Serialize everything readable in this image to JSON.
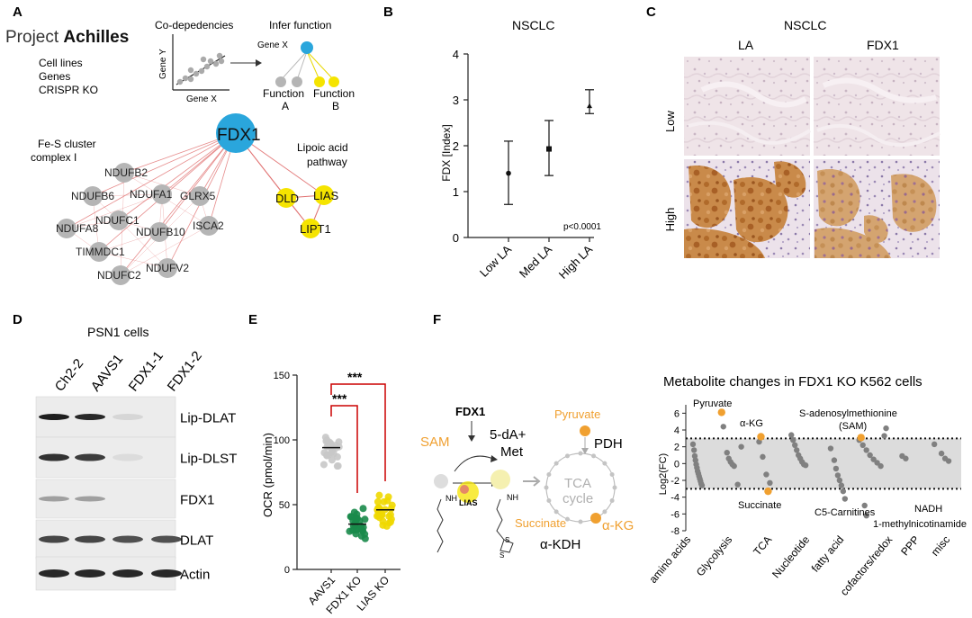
{
  "panels": {
    "a": {
      "letter": "A",
      "logo_text_light": "Project ",
      "logo_text_bold": "Achilles",
      "info_lines": [
        "Cell lines",
        "Genes",
        "CRISPR KO"
      ],
      "codep_title": "Co-depedencies",
      "infer_title": "Infer function",
      "gene_y": "Gene Y",
      "gene_x": "Gene X",
      "gene_x_node": "Gene X",
      "function_a": [
        "Function",
        "A"
      ],
      "function_b": [
        "Function",
        "B"
      ],
      "fes_label": [
        "Fe-S cluster",
        "complex I"
      ],
      "lipoic_label": [
        "Lipoic acid",
        "pathway"
      ],
      "hub": "FDX1",
      "fes_nodes": [
        "NDUFB2",
        "NDUFB6",
        "NDUFA1",
        "GLRX5",
        "NDUFA8",
        "NDUFC1",
        "ISCA2",
        "NDUFB10",
        "TIMMDC1",
        "NDUFC2",
        "NDUFV2"
      ],
      "lipoic_nodes": [
        "DLD",
        "LIAS",
        "LIPT1"
      ],
      "colors": {
        "hub": "#2aa6dc",
        "node": "#b5b5b5",
        "lipoic": "#f5e400",
        "edge": "#e07070"
      }
    },
    "b": {
      "letter": "B",
      "chart_data": {
        "type": "scatter",
        "title": "NSCLC",
        "ylabel": "FDX [Index]",
        "categories": [
          "Low LA",
          "Med LA",
          "High LA"
        ],
        "means": [
          1.4,
          1.93,
          2.87
        ],
        "error_low": [
          0.72,
          1.35,
          2.7
        ],
        "error_high": [
          2.1,
          2.55,
          3.22
        ],
        "ylim": [
          0,
          4
        ],
        "yticks": [
          0,
          1,
          2,
          3,
          4
        ],
        "annotation": "p<0.0001"
      }
    },
    "c": {
      "letter": "C",
      "title": "NSCLC",
      "col_labels": [
        "LA",
        "FDX1"
      ],
      "row_labels": [
        "Low",
        "High"
      ]
    },
    "d": {
      "letter": "D",
      "title": "PSN1 cells",
      "lanes": [
        "Ch2-2",
        "AAVS1",
        "FDX1-1",
        "FDX1-2"
      ],
      "blots": [
        {
          "label": "Lip-DLAT",
          "intensity": [
            1.0,
            0.95,
            0.08,
            0.0
          ]
        },
        {
          "label": "Lip-DLST",
          "intensity": [
            0.9,
            0.85,
            0.05,
            0.0
          ]
        },
        {
          "label": "FDX1",
          "intensity": [
            0.35,
            0.35,
            0.0,
            0.0
          ]
        },
        {
          "label": "DLAT",
          "intensity": [
            0.8,
            0.8,
            0.75,
            0.75
          ]
        },
        {
          "label": "Actin",
          "intensity": [
            0.95,
            0.95,
            0.95,
            0.95
          ]
        }
      ]
    },
    "e": {
      "letter": "E",
      "chart_data": {
        "type": "scatter",
        "ylabel": "OCR (pmol/min)",
        "categories": [
          "AAVS1",
          "FDX1 KO",
          "LIAS KO"
        ],
        "medians": [
          94,
          35,
          46
        ],
        "ranges": [
          [
            78,
            108
          ],
          [
            22,
            48
          ],
          [
            33,
            60
          ]
        ],
        "ylim": [
          0,
          150
        ],
        "yticks": [
          0,
          50,
          100,
          150
        ],
        "significance": [
          "***",
          "***"
        ],
        "colors": [
          "#c8c8c8",
          "#1a8a4a",
          "#f0d800"
        ]
      }
    },
    "f": {
      "letter": "F",
      "pathway": {
        "fdx1": "FDX1",
        "sam": "SAM",
        "dam": [
          "5-dA+",
          "Met"
        ],
        "lias": "LIAS",
        "nh": "NH",
        "s": "S",
        "pyruvate": "Pyruvate",
        "pdh": "PDH",
        "tca": [
          "TCA",
          "cycle"
        ],
        "succinate": "Succinate",
        "akg": "α-KG",
        "akdh": "α-KDH",
        "colors": {
          "orange": "#f0a030",
          "gray": "#b0b0b0"
        }
      },
      "chart_data": {
        "type": "scatter",
        "title": "Metabolite changes in FDX1 KO K562 cells",
        "ylabel": "Log2(FC)",
        "ylim": [
          -8,
          7
        ],
        "yticks": [
          -8,
          -6,
          -4,
          -2,
          0,
          2,
          4,
          6
        ],
        "band": [
          -3,
          3
        ],
        "categories": [
          "amino acids",
          "Glycolysis",
          "TCA",
          "Nucleotide",
          "fatty acid",
          "cofactors/redox",
          "PPP",
          "misc"
        ],
        "points": [
          [
            0.05,
            2.3
          ],
          [
            0.08,
            1.6
          ],
          [
            0.1,
            0.9
          ],
          [
            0.12,
            0.4
          ],
          [
            0.14,
            -0.1
          ],
          [
            0.16,
            -0.5
          ],
          [
            0.18,
            -0.9
          ],
          [
            0.2,
            -1.2
          ],
          [
            0.22,
            -1.5
          ],
          [
            0.24,
            -1.8
          ],
          [
            0.26,
            -2.1
          ],
          [
            0.28,
            -2.4
          ],
          [
            0.3,
            -2.6
          ],
          [
            0.9,
            4.4
          ],
          [
            1.0,
            1.3
          ],
          [
            1.05,
            0.6
          ],
          [
            1.1,
            0.2
          ],
          [
            1.15,
            -0.1
          ],
          [
            1.2,
            -0.3
          ],
          [
            1.3,
            -2.5
          ],
          [
            1.4,
            2.0
          ],
          [
            1.9,
            2.6
          ],
          [
            2.0,
            0.8
          ],
          [
            2.1,
            -1.3
          ],
          [
            2.2,
            -2.3
          ],
          [
            2.8,
            3.4
          ],
          [
            2.85,
            2.8
          ],
          [
            2.9,
            2.2
          ],
          [
            2.95,
            1.6
          ],
          [
            3.0,
            1.0
          ],
          [
            3.05,
            0.6
          ],
          [
            3.1,
            0.2
          ],
          [
            3.15,
            -0.1
          ],
          [
            3.2,
            -0.2
          ],
          [
            3.9,
            1.8
          ],
          [
            4.0,
            0.4
          ],
          [
            4.05,
            -0.6
          ],
          [
            4.1,
            -1.4
          ],
          [
            4.15,
            -2.0
          ],
          [
            4.2,
            -2.6
          ],
          [
            4.25,
            -3.3
          ],
          [
            4.3,
            -4.2
          ],
          [
            4.7,
            2.8
          ],
          [
            4.8,
            2.2
          ],
          [
            4.9,
            1.6
          ],
          [
            5.0,
            1.0
          ],
          [
            5.1,
            0.5
          ],
          [
            5.2,
            0.1
          ],
          [
            5.3,
            -0.3
          ],
          [
            5.4,
            3.3
          ],
          [
            5.45,
            4.2
          ],
          [
            4.85,
            -5.0
          ],
          [
            4.9,
            -6.2
          ],
          [
            5.9,
            0.9
          ],
          [
            6.0,
            0.6
          ],
          [
            6.8,
            2.3
          ],
          [
            7.0,
            1.2
          ],
          [
            7.1,
            0.6
          ],
          [
            7.2,
            0.3
          ]
        ],
        "highlights": [
          {
            "label": "Pyruvate",
            "x": 0.85,
            "y": 6.1
          },
          {
            "label": "α-KG",
            "x": 1.95,
            "y": 3.2
          },
          {
            "label": "Succinate",
            "x": 2.15,
            "y": -3.3
          },
          {
            "label": "S-adenosylmethionine",
            "label2": "(SAM)",
            "x": 4.75,
            "y": 3.1
          }
        ],
        "annotations": [
          "C5-Carnitines",
          "NADH",
          "1-methylnicotinamide"
        ],
        "colors": {
          "point": "#808080",
          "highlight": "#f0a030",
          "band": "#dcdcdc"
        }
      }
    }
  }
}
